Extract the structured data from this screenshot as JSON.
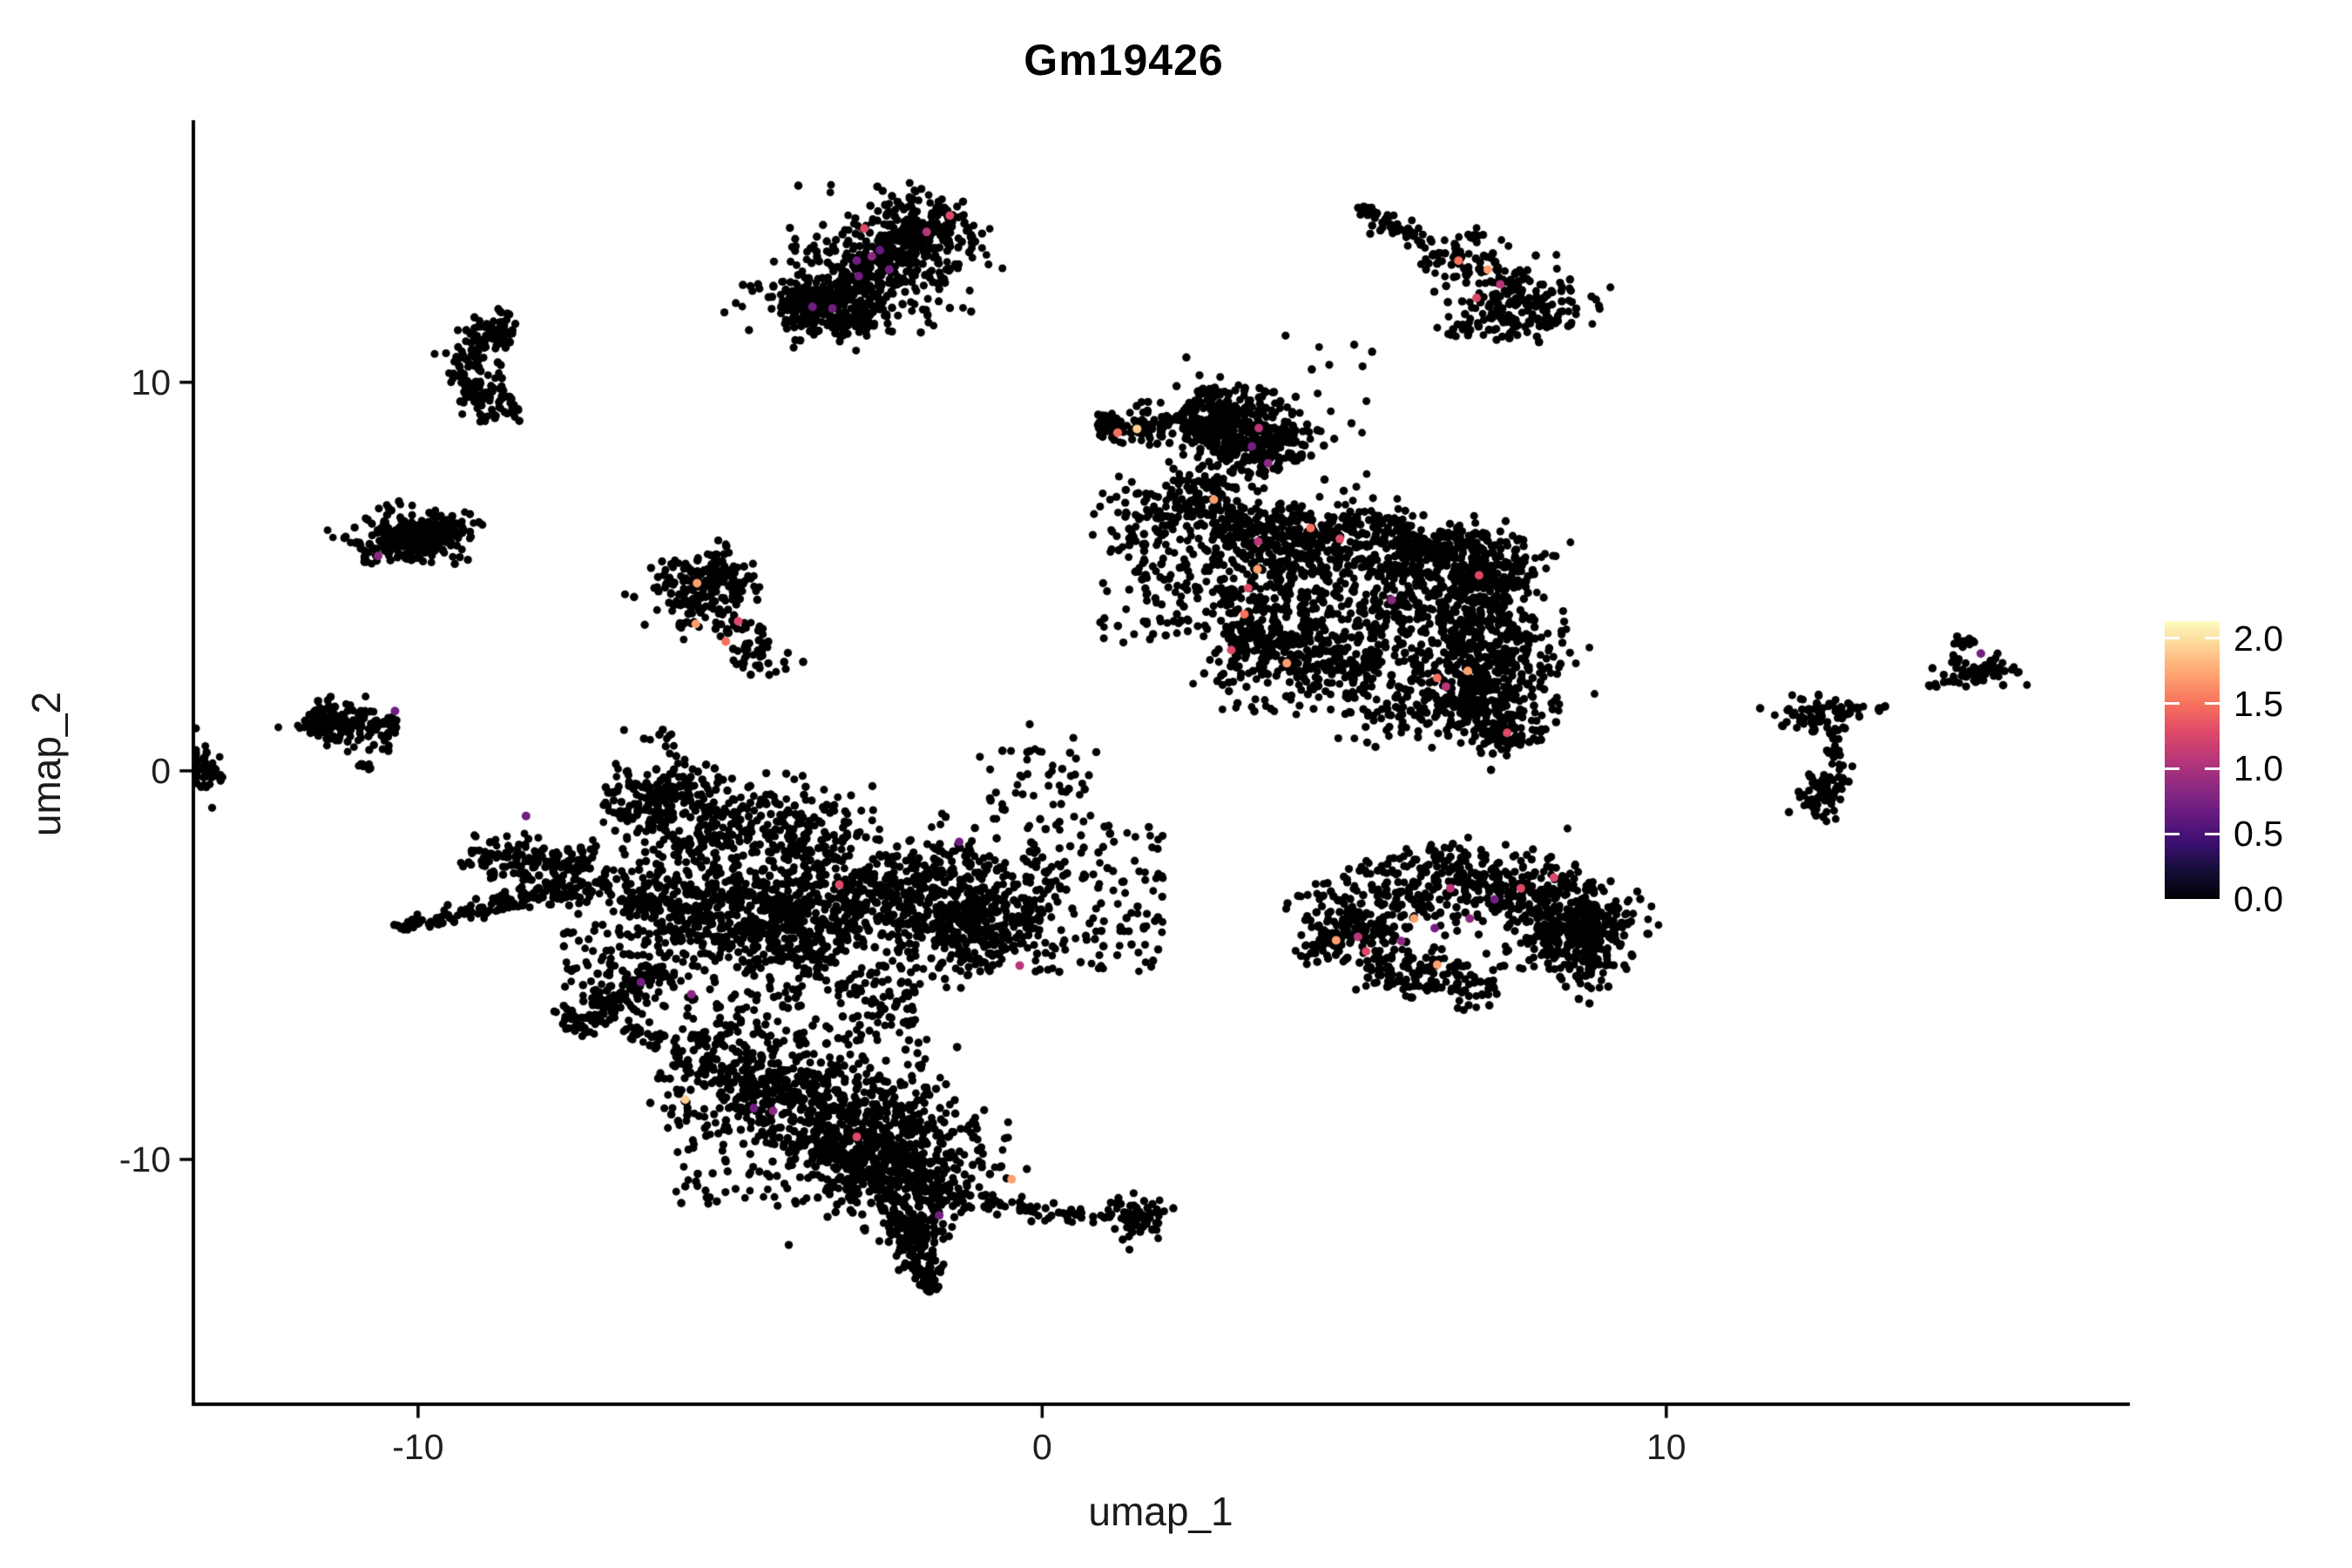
{
  "title": "Gm19426",
  "axes": {
    "x_label": "umap_1",
    "y_label": "umap_2",
    "x_ticks": [
      -10,
      0,
      10
    ],
    "y_ticks": [
      10,
      0,
      -10
    ],
    "x_range": [
      -13.6,
      17.4
    ],
    "y_range": [
      -16.3,
      16.7
    ],
    "axis_color": "#000000",
    "tick_label_color": "#1f1f1f"
  },
  "legend": {
    "tick_labels": [
      "2.0",
      "1.5",
      "1.0",
      "0.5",
      "0.0"
    ],
    "tick_values": [
      2.0,
      1.5,
      1.0,
      0.5,
      0.0
    ],
    "vmin": 0.0,
    "vmax": 2.133,
    "colormap_name": "magma",
    "stops": [
      [
        0.0,
        "#000004"
      ],
      [
        0.1,
        "#140e36"
      ],
      [
        0.2,
        "#3b0f70"
      ],
      [
        0.3,
        "#641a80"
      ],
      [
        0.4,
        "#8c2981"
      ],
      [
        0.5,
        "#b73779"
      ],
      [
        0.6,
        "#de4968"
      ],
      [
        0.7,
        "#f7705c"
      ],
      [
        0.8,
        "#fe9f6d"
      ],
      [
        0.9,
        "#fece91"
      ],
      [
        1.0,
        "#fcfdbf"
      ]
    ]
  },
  "style": {
    "background": "#ffffff",
    "point_color": "#000000",
    "point_radius": 4.6,
    "colored_point_radius": 5.0
  },
  "chart_data": {
    "type": "scatter",
    "title": "Gm19426",
    "xlabel": "umap_1",
    "ylabel": "umap_2",
    "xlim": [
      -13.6,
      17.4
    ],
    "ylim": [
      -16.3,
      16.7
    ],
    "grid": false,
    "legend_position": "right",
    "seed": 7,
    "clusters": [
      {
        "name": "top-left-blob",
        "kind": "strip",
        "x1": -3.8,
        "y1": 11.7,
        "x2": -1.4,
        "y2": 14.5,
        "w": 0.5,
        "n": 620
      },
      {
        "name": "top-left-blob-lobe",
        "kind": "gauss",
        "cx": -3.45,
        "cy": 11.85,
        "sx": 0.5,
        "sy": 0.4,
        "n": 130
      },
      {
        "name": "top-left-blob-halo",
        "kind": "box",
        "x1": -4.05,
        "y1": 11.2,
        "x2": -1.1,
        "y2": 15.1,
        "n": 70
      },
      {
        "name": "crescent",
        "kind": "arc",
        "cx": -8.72,
        "cy": 10.4,
        "rx": 0.5,
        "ry": 0.95,
        "a1": 60,
        "a2": 300,
        "w": 0.22,
        "n": 200
      },
      {
        "name": "left-elongated",
        "kind": "gauss",
        "cx": -10.05,
        "cy": 6.05,
        "sx": 0.45,
        "sy": 0.3,
        "n": 210
      },
      {
        "name": "left-elongated-tail",
        "kind": "strip",
        "x1": -10.95,
        "y1": 5.55,
        "x2": -9.4,
        "y2": 6.35,
        "w": 0.22,
        "n": 90
      },
      {
        "name": "small-mid",
        "kind": "gauss",
        "cx": -5.5,
        "cy": 4.6,
        "sx": 0.4,
        "sy": 0.5,
        "n": 150
      },
      {
        "name": "small-mid-arm",
        "kind": "strip",
        "x1": -5.0,
        "y1": 3.9,
        "x2": -4.2,
        "y2": 2.5,
        "w": 0.28,
        "n": 55
      },
      {
        "name": "small-mid-top",
        "kind": "strip",
        "x1": -5.95,
        "y1": 5.35,
        "x2": -4.6,
        "y2": 4.65,
        "w": 0.3,
        "n": 45
      },
      {
        "name": "left-small",
        "kind": "strip",
        "x1": -11.8,
        "y1": 1.35,
        "x2": -10.35,
        "y2": 0.9,
        "w": 0.27,
        "n": 110
      },
      {
        "name": "left-small-core",
        "kind": "gauss",
        "cx": -11.4,
        "cy": 1.25,
        "sx": 0.3,
        "sy": 0.22,
        "n": 60
      },
      {
        "name": "left-small-dash",
        "kind": "strip",
        "x1": -10.95,
        "y1": 0.2,
        "x2": -10.78,
        "y2": 0.02,
        "w": 0.05,
        "n": 9
      },
      {
        "name": "edge-clump",
        "kind": "gauss",
        "cx": -13.38,
        "cy": 0.1,
        "sx": 0.16,
        "sy": 0.32,
        "n": 42
      },
      {
        "name": "comet-tip-cross",
        "kind": "strip",
        "x1": 5.05,
        "y1": 14.45,
        "x2": 5.5,
        "y2": 14.15,
        "w": 0.1,
        "n": 14
      },
      {
        "name": "comet-tail",
        "kind": "strip",
        "x1": 5.3,
        "y1": 14.2,
        "x2": 6.35,
        "y2": 13.45,
        "w": 0.13,
        "n": 42
      },
      {
        "name": "comet-mid",
        "kind": "strip",
        "x1": 6.35,
        "y1": 13.45,
        "x2": 7.6,
        "y2": 12.45,
        "w": 0.34,
        "n": 100
      },
      {
        "name": "comet-head",
        "kind": "gauss",
        "cx": 7.8,
        "cy": 11.9,
        "sx": 0.5,
        "sy": 0.38,
        "n": 140
      },
      {
        "name": "comet-under",
        "kind": "box",
        "x1": 6.5,
        "y1": 11.05,
        "x2": 7.7,
        "y2": 12.1,
        "n": 28
      },
      {
        "name": "head",
        "kind": "gauss",
        "cx": 2.95,
        "cy": 8.9,
        "sx": 0.52,
        "sy": 0.5,
        "n": 340
      },
      {
        "name": "head2",
        "kind": "gauss",
        "cx": 3.35,
        "cy": 8.25,
        "sx": 0.35,
        "sy": 0.33,
        "n": 70
      },
      {
        "name": "head-ear",
        "kind": "strip",
        "x1": 0.88,
        "y1": 8.72,
        "x2": 1.82,
        "y2": 9.0,
        "w": 0.2,
        "n": 70
      },
      {
        "name": "head-bridge",
        "kind": "strip",
        "x1": 1.82,
        "y1": 9.0,
        "x2": 2.45,
        "y2": 9.25,
        "w": 0.15,
        "n": 22
      },
      {
        "name": "head-right",
        "kind": "strip",
        "x1": 3.6,
        "y1": 8.95,
        "x2": 4.15,
        "y2": 7.95,
        "w": 0.28,
        "n": 55
      },
      {
        "name": "neck",
        "kind": "strip",
        "x1": 2.6,
        "y1": 7.65,
        "x2": 2.2,
        "y2": 6.3,
        "w": 0.35,
        "n": 85
      },
      {
        "name": "left-band",
        "kind": "strip",
        "x1": 1.45,
        "y1": 7.1,
        "x2": 2.6,
        "y2": 3.9,
        "w": 0.5,
        "n": 90
      },
      {
        "name": "left-band-scatter",
        "kind": "box",
        "x1": 0.9,
        "y1": 3.3,
        "x2": 3.0,
        "y2": 7.5,
        "n": 130
      },
      {
        "name": "above-scatter",
        "kind": "box",
        "x1": 3.3,
        "y1": 7.6,
        "x2": 5.3,
        "y2": 11.0,
        "n": 20
      },
      {
        "name": "body-top",
        "kind": "strip",
        "x1": 2.75,
        "y1": 6.2,
        "x2": 6.1,
        "y2": 5.95,
        "w": 0.42,
        "n": 430
      },
      {
        "name": "body-topright",
        "kind": "strip",
        "x1": 6.1,
        "y1": 5.95,
        "x2": 7.55,
        "y2": 4.6,
        "w": 0.5,
        "n": 340
      },
      {
        "name": "body-right",
        "kind": "gauss",
        "cx": 7.25,
        "cy": 3.1,
        "sx": 0.55,
        "sy": 0.85,
        "n": 340
      },
      {
        "name": "body-mid",
        "kind": "strip",
        "x1": 3.0,
        "y1": 5.0,
        "x2": 7.0,
        "y2": 3.6,
        "w": 0.75,
        "n": 430
      },
      {
        "name": "body-bottomleft",
        "kind": "strip",
        "x1": 2.9,
        "y1": 3.5,
        "x2": 5.4,
        "y2": 2.6,
        "w": 0.5,
        "n": 260
      },
      {
        "name": "body-bottom",
        "kind": "gauss",
        "cx": 6.55,
        "cy": 1.75,
        "sx": 0.7,
        "sy": 0.45,
        "n": 210
      },
      {
        "name": "body-tip",
        "kind": "gauss",
        "cx": 7.3,
        "cy": 0.95,
        "sx": 0.33,
        "sy": 0.3,
        "n": 80
      },
      {
        "name": "body-fill",
        "kind": "box",
        "x1": 2.8,
        "y1": 1.4,
        "x2": 7.9,
        "y2": 6.3,
        "n": 240
      },
      {
        "name": "yfork-top-blob",
        "kind": "gauss",
        "cx": 12.35,
        "cy": 1.5,
        "sx": 0.3,
        "sy": 0.27,
        "n": 60
      },
      {
        "name": "yfork-arm",
        "kind": "strip",
        "x1": 12.72,
        "y1": 1.55,
        "x2": 13.55,
        "y2": 1.62,
        "w": 0.1,
        "n": 18
      },
      {
        "name": "yfork-chain",
        "kind": "strip",
        "x1": 12.68,
        "y1": 1.1,
        "x2": 12.75,
        "y2": 0.0,
        "w": 0.08,
        "n": 22
      },
      {
        "name": "yfork-bottom",
        "kind": "gauss",
        "cx": 12.55,
        "cy": -0.6,
        "sx": 0.22,
        "sy": 0.35,
        "n": 75
      },
      {
        "name": "right-small-head",
        "kind": "gauss",
        "cx": 15.0,
        "cy": 2.6,
        "sx": 0.33,
        "sy": 0.18,
        "n": 62
      },
      {
        "name": "right-small-knob",
        "kind": "gauss",
        "cx": 14.8,
        "cy": 3.25,
        "sx": 0.1,
        "sy": 0.13,
        "n": 13
      },
      {
        "name": "right-small-chain",
        "kind": "strip",
        "x1": 14.15,
        "y1": 2.1,
        "x2": 14.65,
        "y2": 2.35,
        "w": 0.07,
        "n": 10
      },
      {
        "name": "oval-arc",
        "kind": "arc",
        "cx": 6.8,
        "cy": -5.4,
        "rx": 2.35,
        "ry": 2.6,
        "a1": 25,
        "a2": 155,
        "w": 0.5,
        "n": 620
      },
      {
        "name": "oval-right",
        "kind": "gauss",
        "cx": 8.55,
        "cy": -4.3,
        "sx": 0.45,
        "sy": 0.55,
        "n": 210
      },
      {
        "name": "oval-right-tip",
        "kind": "gauss",
        "cx": 9.1,
        "cy": -3.8,
        "sx": 0.17,
        "sy": 0.3,
        "n": 28
      },
      {
        "name": "oval-left-tip",
        "kind": "gauss",
        "cx": 4.62,
        "cy": -4.5,
        "sx": 0.3,
        "sy": 0.25,
        "n": 60
      },
      {
        "name": "oval-bottom",
        "kind": "strip",
        "x1": 5.2,
        "y1": -5.0,
        "x2": 7.3,
        "y2": -5.6,
        "w": 0.33,
        "n": 150
      },
      {
        "name": "bl-arm-upper",
        "kind": "strip",
        "x1": -9.25,
        "y1": -2.1,
        "x2": -7.4,
        "y2": -2.6,
        "w": 0.28,
        "n": 110
      },
      {
        "name": "bl-arm-lower",
        "kind": "strip",
        "x1": -10.35,
        "y1": -4.05,
        "x2": -7.5,
        "y2": -3.05,
        "w": 0.22,
        "n": 130,
        "taper": "start"
      },
      {
        "name": "bl-arm-join",
        "kind": "gauss",
        "cx": -7.35,
        "cy": -2.75,
        "sx": 0.5,
        "sy": 0.5,
        "n": 90
      },
      {
        "name": "bl-bridge",
        "kind": "strip",
        "x1": -6.2,
        "y1": 1.05,
        "x2": -5.55,
        "y2": -0.75,
        "w": 0.16,
        "n": 30
      },
      {
        "name": "bl-top-band",
        "kind": "strip",
        "x1": -6.9,
        "y1": -0.45,
        "x2": -3.1,
        "y2": -2.0,
        "w": 0.5,
        "n": 330
      },
      {
        "name": "bl-top-arc",
        "kind": "arc",
        "cx": -5.55,
        "cy": -1.15,
        "rx": 0.7,
        "ry": 0.8,
        "a1": 120,
        "a2": 330,
        "w": 0.18,
        "n": 60
      },
      {
        "name": "bl-top-scatter",
        "kind": "box",
        "x1": -7.0,
        "y1": -2.3,
        "x2": -2.6,
        "y2": -0.05,
        "n": 80
      },
      {
        "name": "bl-central-1",
        "kind": "strip",
        "x1": -6.6,
        "y1": -3.2,
        "x2": -3.2,
        "y2": -4.6,
        "w": 0.7,
        "n": 520
      },
      {
        "name": "bl-central-2",
        "kind": "gauss",
        "cx": -4.3,
        "cy": -3.4,
        "sx": 0.9,
        "sy": 0.7,
        "n": 300
      },
      {
        "name": "bl-central-3",
        "kind": "strip",
        "x1": -3.0,
        "y1": -2.6,
        "x2": -0.35,
        "y2": -4.4,
        "w": 0.75,
        "n": 420
      },
      {
        "name": "bl-central-4",
        "kind": "gauss",
        "cx": -1.3,
        "cy": -3.3,
        "sx": 0.7,
        "sy": 0.8,
        "n": 260
      },
      {
        "name": "bl-right-scatter",
        "kind": "box",
        "x1": -0.3,
        "y1": -5.2,
        "x2": 1.95,
        "y2": -1.3,
        "n": 140
      },
      {
        "name": "bl-upper-right-scatter",
        "kind": "box",
        "x1": -1.0,
        "y1": -1.2,
        "x2": 0.9,
        "y2": 0.6,
        "n": 45
      },
      {
        "name": "bl-ridge",
        "kind": "strip",
        "x1": -7.65,
        "y1": -6.6,
        "x2": -6.0,
        "y2": -5.1,
        "w": 0.2,
        "n": 130
      },
      {
        "name": "bl-ridge-streak",
        "kind": "strip",
        "x1": -6.55,
        "y1": -6.55,
        "x2": -6.1,
        "y2": -7.1,
        "w": 0.1,
        "n": 28
      },
      {
        "name": "bl-left-scatter",
        "kind": "box",
        "x1": -7.7,
        "y1": -6.6,
        "x2": -6.0,
        "y2": -4.1,
        "n": 90
      },
      {
        "name": "bl-wedge-1",
        "kind": "strip",
        "x1": -5.9,
        "y1": -7.3,
        "x2": -2.05,
        "y2": -9.15,
        "w": 0.65,
        "n": 380
      },
      {
        "name": "bl-wedge-2",
        "kind": "gauss",
        "cx": -2.35,
        "cy": -9.9,
        "sx": 0.8,
        "sy": 0.85,
        "n": 370
      },
      {
        "name": "bl-wedge-3",
        "kind": "strip",
        "x1": -4.6,
        "y1": -8.0,
        "x2": -2.6,
        "y2": -10.6,
        "w": 0.55,
        "n": 260
      },
      {
        "name": "bl-wedge-fill",
        "kind": "box",
        "x1": -6.0,
        "y1": -11.2,
        "x2": -1.3,
        "y2": -6.8,
        "n": 210
      },
      {
        "name": "bl-hole-edge",
        "kind": "box",
        "x1": -5.8,
        "y1": -7.0,
        "x2": -3.4,
        "y2": -5.6,
        "n": 55
      },
      {
        "name": "bl-midright-scatter",
        "kind": "box",
        "x1": -3.3,
        "y1": -7.0,
        "x2": -2.0,
        "y2": -5.0,
        "n": 85
      },
      {
        "name": "bl-tip-blob",
        "kind": "gauss",
        "cx": -1.95,
        "cy": -11.0,
        "sx": 0.45,
        "sy": 0.5,
        "n": 120
      },
      {
        "name": "bl-tip",
        "kind": "strip",
        "x1": -2.1,
        "y1": -11.4,
        "x2": -1.78,
        "y2": -13.4,
        "w": 0.27,
        "n": 150,
        "taper": "end"
      },
      {
        "name": "bl-arm-chain",
        "kind": "strip",
        "x1": -1.35,
        "y1": -11.05,
        "x2": 1.1,
        "y2": -11.55,
        "w": 0.13,
        "n": 60
      },
      {
        "name": "bl-arm-end",
        "kind": "gauss",
        "cx": 1.5,
        "cy": -11.5,
        "sx": 0.22,
        "sy": 0.28,
        "n": 70
      }
    ],
    "expressing_cells": [
      [
        -2.97,
        13.13,
        "#721f81"
      ],
      [
        -2.73,
        13.24,
        "#8c2981"
      ],
      [
        -2.94,
        12.73,
        "#721f81"
      ],
      [
        -2.45,
        12.9,
        "#721f81"
      ],
      [
        -3.36,
        11.9,
        "#721f81"
      ],
      [
        -3.68,
        11.94,
        "#721f81"
      ],
      [
        -1.85,
        13.87,
        "#b73779"
      ],
      [
        -2.85,
        13.96,
        "#de4968"
      ],
      [
        -1.48,
        14.29,
        "#de4968"
      ],
      [
        -2.6,
        13.4,
        "#641a80"
      ],
      [
        -10.64,
        5.53,
        "#8c2981"
      ],
      [
        -5.53,
        4.83,
        "#fe9f6d"
      ],
      [
        -5.55,
        3.78,
        "#fe9f6d"
      ],
      [
        -4.87,
        3.85,
        "#de4968"
      ],
      [
        -5.07,
        3.33,
        "#f7705c"
      ],
      [
        -10.37,
        1.54,
        "#721f81"
      ],
      [
        6.67,
        13.13,
        "#f7705c"
      ],
      [
        7.14,
        12.9,
        "#fe9f6d"
      ],
      [
        7.34,
        12.52,
        "#b73779"
      ],
      [
        6.96,
        12.17,
        "#de4968"
      ],
      [
        1.52,
        8.8,
        "#fece91"
      ],
      [
        1.21,
        8.7,
        "#f7705c"
      ],
      [
        3.36,
        8.35,
        "#721f81"
      ],
      [
        3.62,
        7.92,
        "#8c2981"
      ],
      [
        3.47,
        8.82,
        "#b73779"
      ],
      [
        2.75,
        6.98,
        "#fe9f6d"
      ],
      [
        3.46,
        5.9,
        "#b73779"
      ],
      [
        4.77,
        5.97,
        "#de4968"
      ],
      [
        3.45,
        5.19,
        "#fe9f6d"
      ],
      [
        3.3,
        4.7,
        "#de4968"
      ],
      [
        5.6,
        4.4,
        "#8c2981"
      ],
      [
        7.0,
        5.03,
        "#de4968"
      ],
      [
        3.24,
        4.03,
        "#f7705c"
      ],
      [
        3.03,
        3.11,
        "#de4968"
      ],
      [
        3.92,
        2.77,
        "#fe9f6d"
      ],
      [
        6.33,
        2.39,
        "#f7705c"
      ],
      [
        6.82,
        2.57,
        "#fe9f6d"
      ],
      [
        6.47,
        2.17,
        "#b73779"
      ],
      [
        7.45,
        0.98,
        "#de4968"
      ],
      [
        4.3,
        6.25,
        "#f7705c"
      ],
      [
        15.04,
        3.02,
        "#721f81"
      ],
      [
        6.54,
        -3.02,
        "#b73779"
      ],
      [
        7.67,
        -3.02,
        "#de4968"
      ],
      [
        7.25,
        -3.31,
        "#721f81"
      ],
      [
        5.96,
        -3.8,
        "#fe9f6d"
      ],
      [
        6.85,
        -3.8,
        "#8c2981"
      ],
      [
        6.29,
        -4.05,
        "#721f81"
      ],
      [
        5.06,
        -4.27,
        "#b73779"
      ],
      [
        4.71,
        -4.36,
        "#fe9f6d"
      ],
      [
        5.19,
        -4.65,
        "#de4968"
      ],
      [
        6.33,
        -4.99,
        "#fe9f6d"
      ],
      [
        5.75,
        -4.38,
        "#8c2981"
      ],
      [
        8.2,
        -2.75,
        "#de4968"
      ],
      [
        -8.27,
        -1.16,
        "#721f81"
      ],
      [
        -6.43,
        -5.44,
        "#721f81"
      ],
      [
        -5.62,
        -5.75,
        "#8c2981"
      ],
      [
        -4.62,
        -8.68,
        "#721f81"
      ],
      [
        -4.31,
        -8.75,
        "#8c2981"
      ],
      [
        -1.65,
        -11.44,
        "#721f81"
      ],
      [
        -0.49,
        -10.51,
        "#fe9f6d"
      ],
      [
        -2.97,
        -9.42,
        "#de4968"
      ],
      [
        -1.33,
        -1.83,
        "#721f81"
      ],
      [
        -0.36,
        -5.01,
        "#b73779"
      ],
      [
        -3.25,
        -2.93,
        "#de4968"
      ],
      [
        -5.72,
        -8.46,
        "#fece91"
      ]
    ],
    "stray_points": [
      [
        12.3,
        -0.15
      ],
      [
        3.9,
        11.2
      ],
      [
        4.6,
        10.45
      ],
      [
        -0.2,
        1.2
      ],
      [
        0.5,
        0.85
      ],
      [
        -6.7,
        1.05
      ],
      [
        -13.3,
        -0.95
      ]
    ]
  }
}
